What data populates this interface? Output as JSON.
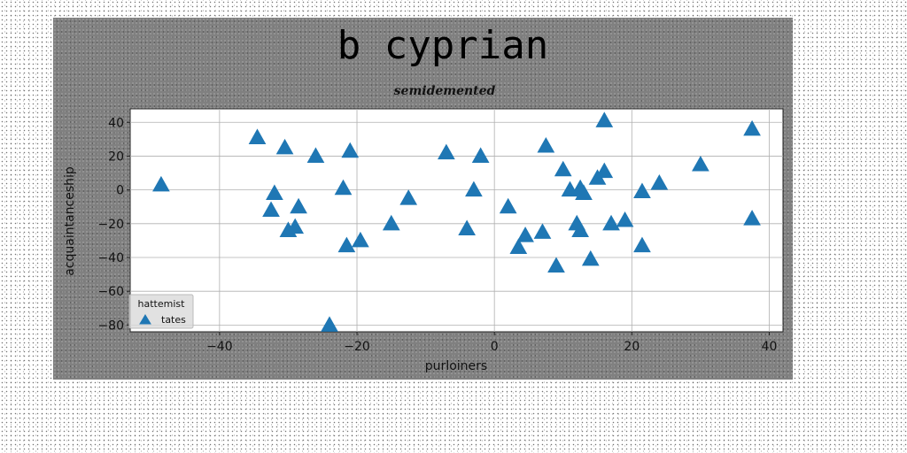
{
  "chart_data": {
    "type": "scatter",
    "title": "b cyprian",
    "subtitle": "semidemented",
    "xlabel": "purloiners",
    "ylabel": "acquaintanceship",
    "xlim": [
      -53,
      42
    ],
    "ylim": [
      -84,
      48
    ],
    "xticks": [
      -40,
      -20,
      0,
      20,
      40
    ],
    "xtick_labels": [
      "−40",
      "−20",
      "0",
      "20",
      "40"
    ],
    "yticks": [
      -80,
      -60,
      -40,
      -20,
      0,
      20,
      40
    ],
    "ytick_labels": [
      "−80",
      "−60",
      "−40",
      "−20",
      "0",
      "20",
      "40"
    ],
    "grid": true,
    "legend": {
      "title": "hattemist",
      "placement": "lower-left"
    },
    "series": [
      {
        "name": "tates",
        "color": "#1f77b4",
        "marker": "triangle-up",
        "points": [
          [
            -48.5,
            3
          ],
          [
            -34.5,
            31
          ],
          [
            -30.5,
            25
          ],
          [
            -26,
            20
          ],
          [
            -21,
            23
          ],
          [
            -32,
            -2
          ],
          [
            -32.5,
            -12
          ],
          [
            -28.5,
            -10
          ],
          [
            -30,
            -24
          ],
          [
            -29,
            -22
          ],
          [
            -22,
            1
          ],
          [
            -21.5,
            -33
          ],
          [
            -19.5,
            -30
          ],
          [
            -24,
            -80
          ],
          [
            -15,
            -20
          ],
          [
            -12.5,
            -5
          ],
          [
            -7,
            22
          ],
          [
            -2,
            20
          ],
          [
            -3,
            0
          ],
          [
            -4,
            -23
          ],
          [
            2,
            -10
          ],
          [
            3.5,
            -34
          ],
          [
            4.5,
            -27
          ],
          [
            7,
            -25
          ],
          [
            7.5,
            26
          ],
          [
            9,
            -45
          ],
          [
            10,
            12
          ],
          [
            11,
            0
          ],
          [
            12,
            -20
          ],
          [
            12.5,
            1
          ],
          [
            13,
            -2
          ],
          [
            12.5,
            -24
          ],
          [
            14,
            -41
          ],
          [
            15,
            7
          ],
          [
            16,
            11
          ],
          [
            16,
            41
          ],
          [
            17,
            -20
          ],
          [
            19,
            -18
          ],
          [
            21.5,
            -33
          ],
          [
            21.5,
            -1
          ],
          [
            24,
            4
          ],
          [
            30,
            15
          ],
          [
            37.5,
            36
          ],
          [
            37.5,
            -17
          ]
        ]
      }
    ]
  }
}
